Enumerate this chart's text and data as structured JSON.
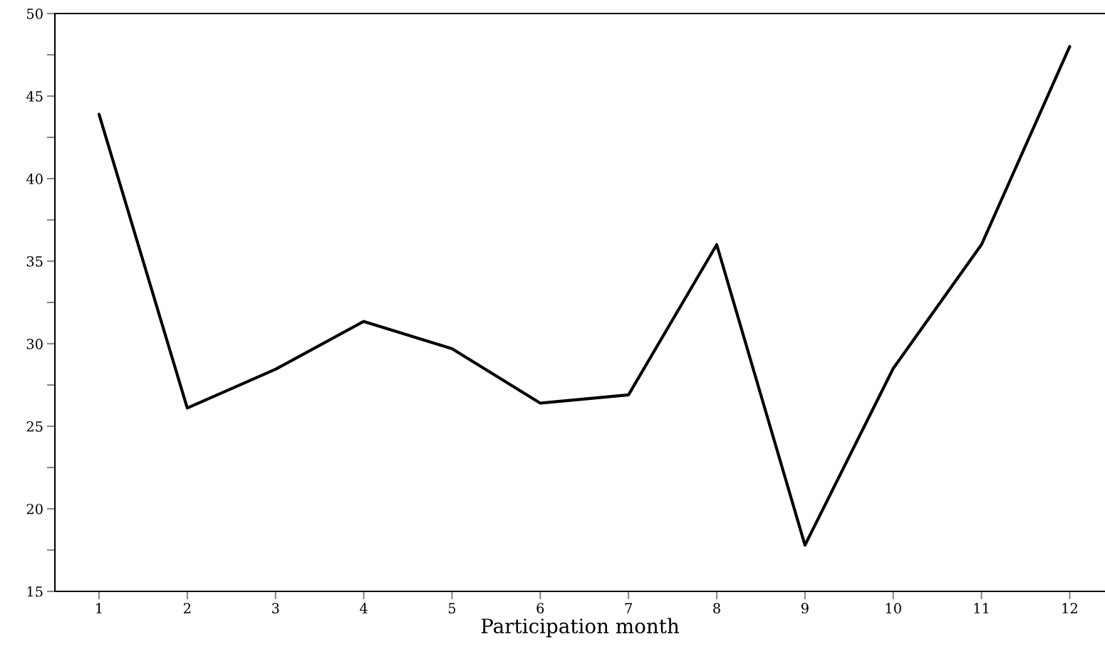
{
  "chart_data": {
    "type": "line",
    "xlabel": "Participation month",
    "x": [
      1,
      2,
      3,
      4,
      5,
      6,
      7,
      8,
      9,
      10,
      11,
      12
    ],
    "series": [
      {
        "color": "#000000",
        "values": [
          43.9,
          26.1,
          28.45,
          31.35,
          29.7,
          26.4,
          26.9,
          36.0,
          17.8,
          28.5,
          36.0,
          48.0
        ]
      }
    ],
    "xlim": [
      0.5,
      12.4
    ],
    "xticks": [
      1,
      2,
      3,
      4,
      5,
      6,
      7,
      8,
      9,
      10,
      11,
      12
    ],
    "ylim": [
      15,
      50
    ],
    "yticks": [
      15,
      {
        "value": 17.5,
        "label": null
      },
      20,
      {
        "value": 22.5,
        "label": null
      },
      25,
      {
        "value": 27.5,
        "label": null
      },
      30,
      {
        "value": 32.5,
        "label": null
      },
      35,
      {
        "value": 37.5,
        "label": null
      },
      40,
      {
        "value": 42.5,
        "label": null
      },
      45,
      {
        "value": 47.5,
        "label": null
      },
      50
    ],
    "grid": false,
    "legend": false,
    "marker": "none",
    "line_style": "solid"
  }
}
